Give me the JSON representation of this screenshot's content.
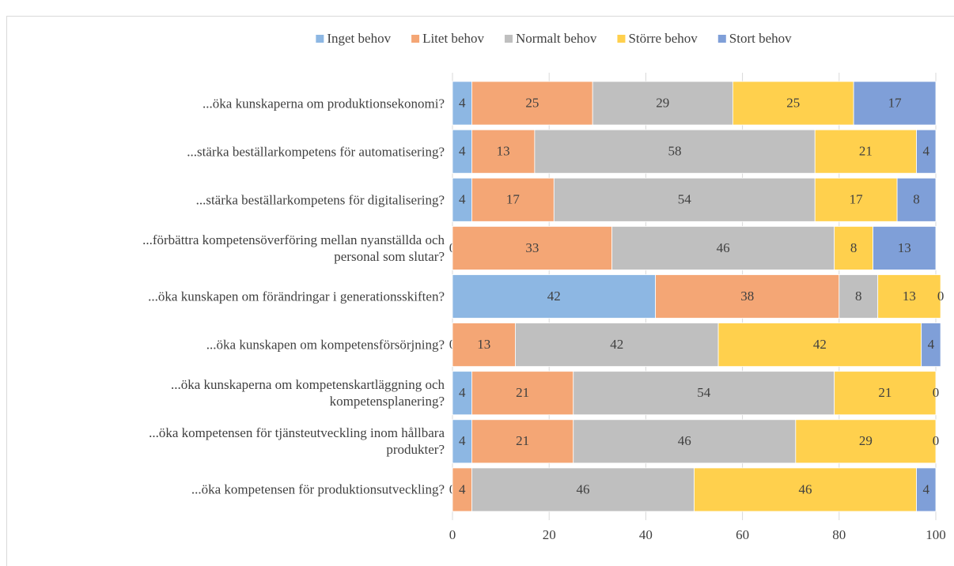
{
  "chart_data": {
    "type": "stacked_barh",
    "categories": [
      "...öka kunskaperna om produktionsekonomi?",
      "...stärka beställarkompetens för automatisering?",
      "...stärka beställarkompetens för digitalisering?",
      "...förbättra kompetensöverföring mellan nyanställda och\npersonal som slutar?",
      "...öka kunskapen om förändringar i generationsskiften?",
      "...öka kunskapen om  kompetensförsörjning?",
      "...öka kunskaperna om kompetenskartläggning och\nkompetensplanering?",
      "...öka kompetensen för tjänsteutveckling inom hållbara\nprodukter?",
      "...öka kompetensen för produktionsutveckling?"
    ],
    "series": [
      {
        "name": "Inget behov",
        "color": "#8db7e3",
        "values": [
          4,
          4,
          4,
          0,
          42,
          0,
          4,
          4,
          0
        ]
      },
      {
        "name": "Litet behov",
        "color": "#f4a675",
        "values": [
          25,
          13,
          17,
          33,
          38,
          13,
          21,
          21,
          4
        ]
      },
      {
        "name": "Normalt behov",
        "color": "#bfbfbf",
        "values": [
          29,
          58,
          54,
          46,
          8,
          42,
          54,
          46,
          46
        ]
      },
      {
        "name": "Större behov",
        "color": "#ffd04d",
        "values": [
          25,
          21,
          17,
          8,
          13,
          42,
          21,
          29,
          46
        ]
      },
      {
        "name": "Stort behov",
        "color": "#7f9fd8",
        "values": [
          17,
          4,
          8,
          13,
          0,
          4,
          0,
          0,
          4
        ]
      }
    ],
    "xlim": [
      0,
      100
    ],
    "xticks": [
      0,
      20,
      40,
      60,
      80,
      100
    ],
    "grid": true,
    "legend": "top"
  }
}
